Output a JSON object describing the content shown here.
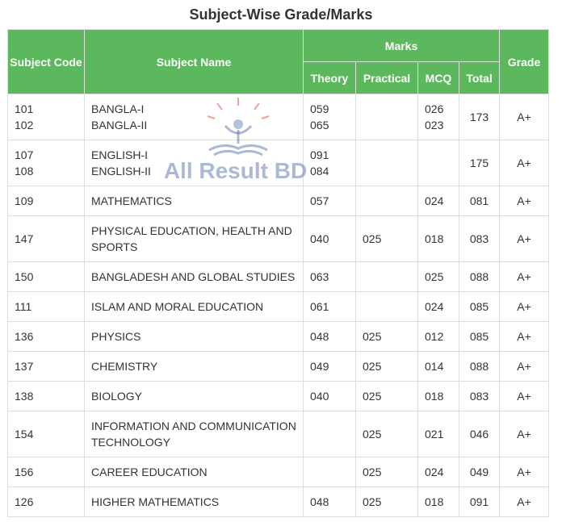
{
  "title": "Subject-Wise Grade/Marks",
  "watermark": "All Result BD",
  "headers": {
    "subject_code": "Subject Code",
    "subject_name": "Subject Name",
    "marks": "Marks",
    "grade": "Grade",
    "theory": "Theory",
    "practical": "Practical",
    "mcq": "MCQ",
    "total": "Total"
  },
  "rows": [
    {
      "code1": "101",
      "code2": "102",
      "name1": "BANGLA-I",
      "name2": "BANGLA-II",
      "theory1": "059",
      "theory2": "065",
      "practical": "",
      "mcq1": "026",
      "mcq2": "023",
      "total": "173",
      "grade": "A+"
    },
    {
      "code1": "107",
      "code2": "108",
      "name1": "ENGLISH-I",
      "name2": "ENGLISH-II",
      "theory1": "091",
      "theory2": "084",
      "practical": "",
      "mcq1": "",
      "mcq2": "",
      "total": "175",
      "grade": "A+"
    },
    {
      "code": "109",
      "name": "MATHEMATICS",
      "theory": "057",
      "practical": "",
      "mcq": "024",
      "total": "081",
      "grade": "A+"
    },
    {
      "code": "147",
      "name": "PHYSICAL EDUCATION, HEALTH AND SPORTS",
      "theory": "040",
      "practical": "025",
      "mcq": "018",
      "total": "083",
      "grade": "A+"
    },
    {
      "code": "150",
      "name": "BANGLADESH AND GLOBAL STUDIES",
      "theory": "063",
      "practical": "",
      "mcq": "025",
      "total": "088",
      "grade": "A+"
    },
    {
      "code": "111",
      "name": "ISLAM AND MORAL EDUCATION",
      "theory": "061",
      "practical": "",
      "mcq": "024",
      "total": "085",
      "grade": "A+"
    },
    {
      "code": "136",
      "name": "PHYSICS",
      "theory": "048",
      "practical": "025",
      "mcq": "012",
      "total": "085",
      "grade": "A+"
    },
    {
      "code": "137",
      "name": "CHEMISTRY",
      "theory": "049",
      "practical": "025",
      "mcq": "014",
      "total": "088",
      "grade": "A+"
    },
    {
      "code": "138",
      "name": "BIOLOGY",
      "theory": "040",
      "practical": "025",
      "mcq": "018",
      "total": "083",
      "grade": "A+"
    },
    {
      "code": "154",
      "name": "INFORMATION AND COMMUNICATION TECHNOLOGY",
      "theory": "",
      "practical": "025",
      "mcq": "021",
      "total": "046",
      "grade": "A+"
    },
    {
      "code": "156",
      "name": "CAREER EDUCATION",
      "theory": "",
      "practical": "025",
      "mcq": "024",
      "total": "049",
      "grade": "A+"
    },
    {
      "code": "126",
      "name": "HIGHER MATHEMATICS",
      "theory": "048",
      "practical": "025",
      "mcq": "018",
      "total": "091",
      "grade": "A+"
    }
  ]
}
